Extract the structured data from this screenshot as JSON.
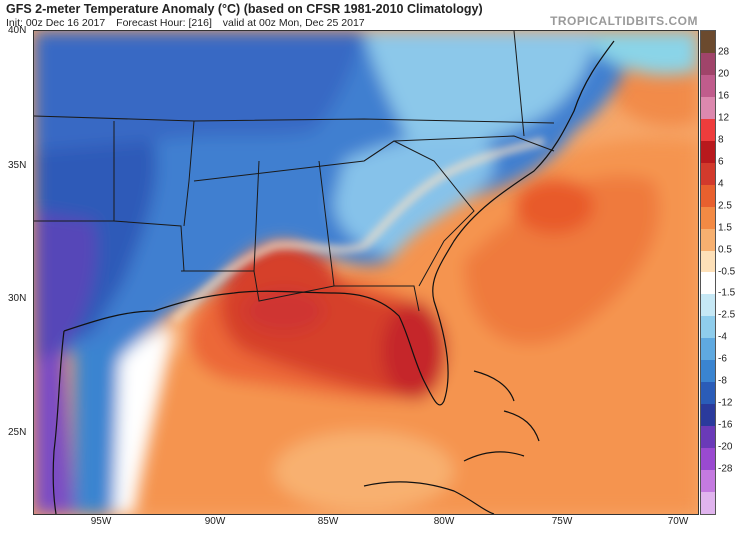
{
  "header": {
    "title": "GFS 2-meter Temperature Anomaly (°C) (based on CFSR 1981-2010 Climatology)",
    "init": "Init: 00z Dec 16 2017",
    "forecast_hour": "Forecast Hour: [216]",
    "valid": "valid at 00z Mon, Dec 25 2017",
    "brand": "TROPICALTIDBITS.COM"
  },
  "axes": {
    "lat_labels": [
      "40N",
      "35N",
      "30N",
      "25N"
    ],
    "lon_labels": [
      "95W",
      "90W",
      "85W",
      "80W",
      "75W",
      "70W"
    ]
  },
  "colorbar": {
    "labels": [
      "28",
      "20",
      "16",
      "12",
      "8",
      "6",
      "4",
      "2.5",
      "1.5",
      "0.5",
      "-0.5",
      "-1.5",
      "-2.5",
      "-4",
      "-6",
      "-8",
      "-12",
      "-16",
      "-20",
      "-28"
    ],
    "colors": [
      "#6b4a2e",
      "#a0446a",
      "#c05c8c",
      "#dc88ae",
      "#ee3c3c",
      "#b8191d",
      "#d23a2c",
      "#e8602e",
      "#f38a44",
      "#f7b070",
      "#fde0b8",
      "#ffffff",
      "#c6e8f5",
      "#8fcdec",
      "#5fa9e0",
      "#3a84d0",
      "#2a5cb8",
      "#2a3a9c",
      "#6a3ab8",
      "#9a4ad0",
      "#c47ae0",
      "#e0b4ee"
    ]
  }
}
